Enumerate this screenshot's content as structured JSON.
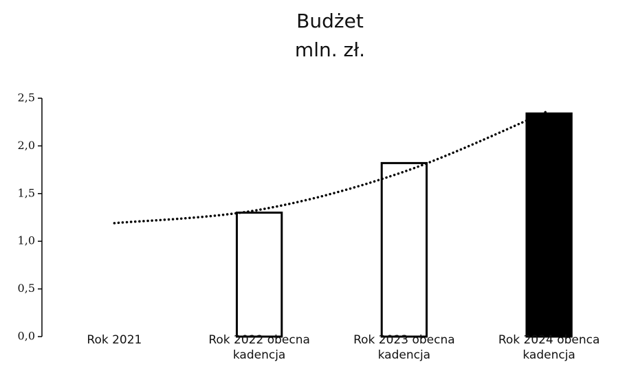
{
  "chart_data": {
    "type": "bar",
    "title": "Budżet",
    "subtitle": "mln. zł.",
    "categories": [
      "Rok 2021",
      "Rok 2022 obecna\nkadencja",
      "Rok 2023 obecna\nkadencja",
      "Rok 2024 obenca\nkadencja"
    ],
    "values": [
      null,
      1.3,
      1.82,
      2.34
    ],
    "bar_fills": [
      null,
      "#ffffff",
      "#ffffff",
      "#000000"
    ],
    "bar_stroke": "#000000",
    "trendline": {
      "values": [
        1.19,
        1.33,
        1.73,
        2.37
      ],
      "style": "dotted",
      "color": "#000000"
    },
    "ylim": [
      0,
      2.5
    ],
    "yticks": [
      {
        "value": 0,
        "label": "0,0"
      },
      {
        "value": 0.5,
        "label": "0,5"
      },
      {
        "value": 1,
        "label": "1,0"
      },
      {
        "value": 1.5,
        "label": "1,5"
      },
      {
        "value": 2,
        "label": "2,0"
      },
      {
        "value": 2.5,
        "label": "2,5"
      }
    ],
    "grid": false
  }
}
